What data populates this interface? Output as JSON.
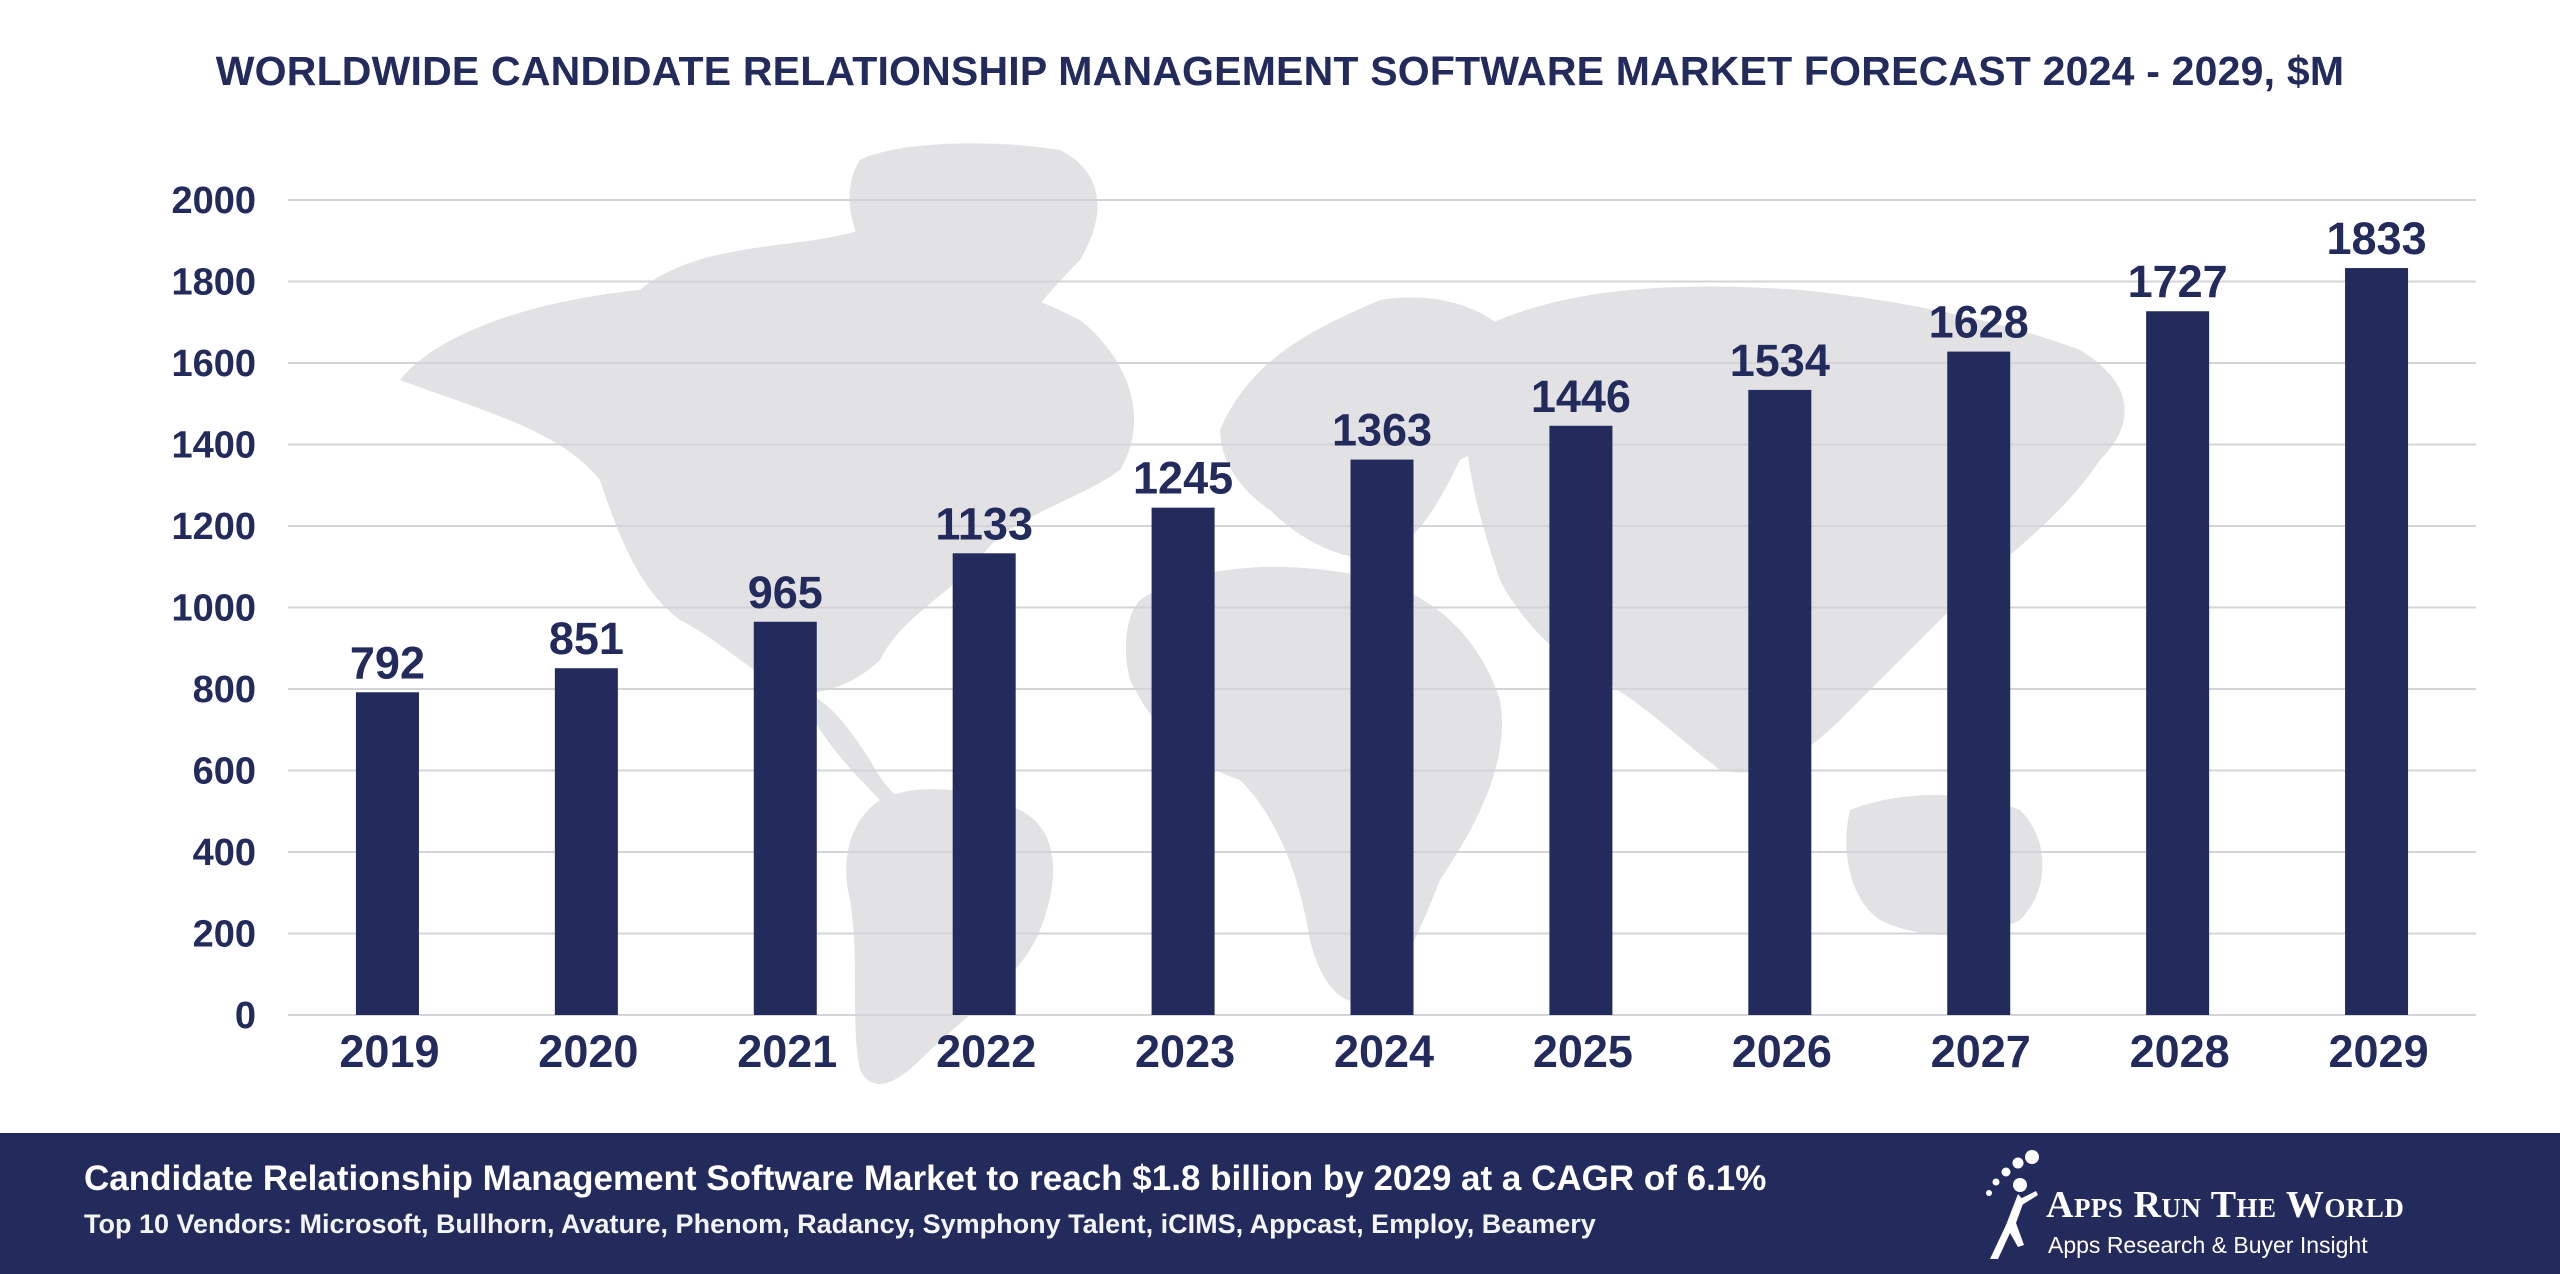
{
  "chart_data": {
    "type": "bar",
    "title": "WORLDWIDE CANDIDATE RELATIONSHIP MANAGEMENT SOFTWARE MARKET FORECAST 2024 - 2029, $M",
    "xlabel": "",
    "ylabel": "",
    "categories": [
      "2019",
      "2020",
      "2021",
      "2022",
      "2023",
      "2024",
      "2025",
      "2026",
      "2027",
      "2028",
      "2029"
    ],
    "values": [
      792,
      851,
      965,
      1133,
      1245,
      1363,
      1446,
      1534,
      1628,
      1727,
      1833
    ],
    "ylim": [
      0,
      2000
    ],
    "yticks": [
      "0",
      "200",
      "400",
      "600",
      "800",
      "1000",
      "1200",
      "1400",
      "1600",
      "1800",
      "2000"
    ],
    "grid": true,
    "legend": "none",
    "bar_color": "#232a5c",
    "background_image": "world-map-silhouette"
  },
  "footer": {
    "headline": "Candidate Relationship Management Software Market to reach $1.8 billion by 2029 at a CAGR of 6.1%",
    "vendors": "Top 10 Vendors: Microsoft, Bullhorn, Avature, Phenom, Radancy, Symphony Talent, iCIMS, Appcast, Employ, Beamery",
    "brand_name": "Apps Run The World",
    "brand_tagline": "Apps Research & Buyer Insight",
    "background_color": "#232a5c"
  }
}
